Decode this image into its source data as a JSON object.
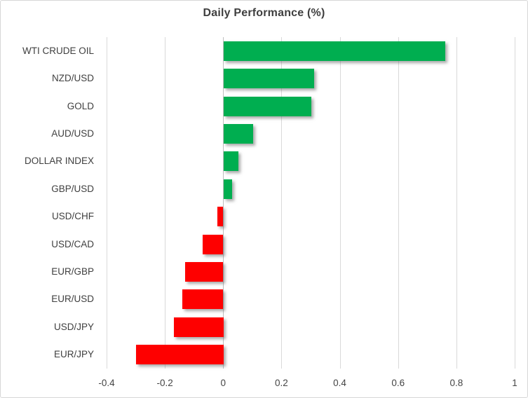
{
  "chart_data": {
    "type": "bar",
    "orientation": "horizontal",
    "title": "Daily Performance (%)",
    "categories": [
      "WTI CRUDE OIL",
      "NZD/USD",
      "GOLD",
      "AUD/USD",
      "DOLLAR INDEX",
      "GBP/USD",
      "USD/CHF",
      "USD/CAD",
      "EUR/GBP",
      "EUR/USD",
      "USD/JPY",
      "EUR/JPY"
    ],
    "values": [
      0.76,
      0.31,
      0.3,
      0.1,
      0.05,
      0.03,
      -0.02,
      -0.07,
      -0.13,
      -0.14,
      -0.17,
      -0.3
    ],
    "xlabel": "",
    "ylabel": "",
    "xlim": [
      -0.4,
      1.0
    ],
    "xticks": [
      -0.4,
      -0.2,
      0,
      0.2,
      0.4,
      0.6,
      0.8,
      1
    ],
    "xtick_labels": [
      "-0.4",
      "-0.2",
      "0",
      "0.2",
      "0.4",
      "0.6",
      "0.8",
      "1"
    ],
    "grid": true,
    "legend": false,
    "positive_color": "#00AE50",
    "negative_color": "#FE0000",
    "gridline_color": "#D9D9D9",
    "zero_line_color": "#BFBFBF"
  }
}
